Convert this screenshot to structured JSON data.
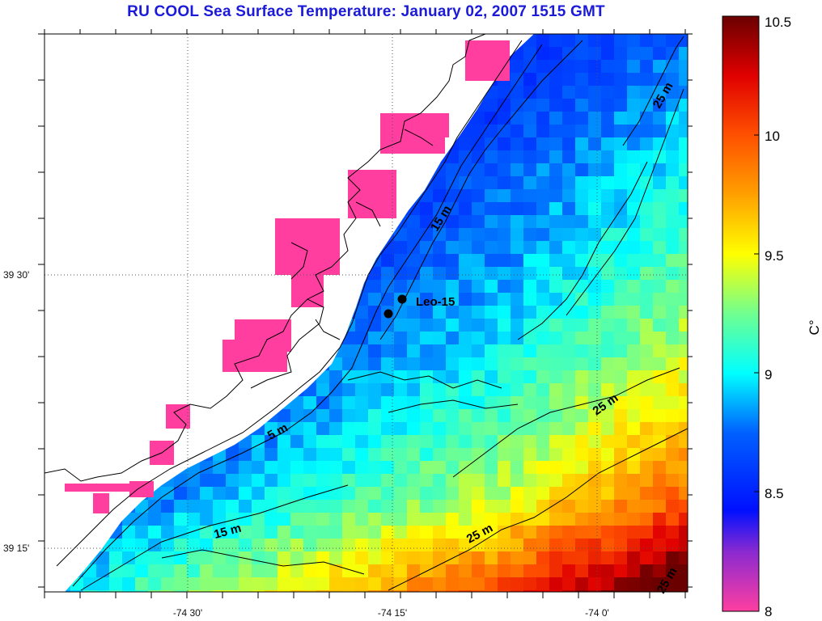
{
  "title": "RU COOL  Sea Surface Temperature:  January 02, 2007 1515 GMT",
  "map": {
    "x_ticks": [
      "-74 30'",
      "-74 15'",
      "-74 0'"
    ],
    "y_ticks": [
      "39 30'",
      "39 15'"
    ],
    "depth_contours": [
      {
        "label": "5 m"
      },
      {
        "label": "15 m"
      },
      {
        "label": "15 m"
      },
      {
        "label": "25 m"
      },
      {
        "label": "25 m"
      },
      {
        "label": "25 m"
      },
      {
        "label": "25 m"
      }
    ],
    "station": {
      "label": "Leo-15"
    },
    "colors": {
      "land": "#ffffff",
      "coastline": "#000000",
      "grid": "#555555"
    }
  },
  "colorbar": {
    "min": 8,
    "max": 10.5,
    "ticks": [
      "10.5",
      "10",
      "9.5",
      "9",
      "8.5",
      "8"
    ],
    "unit": "C°",
    "colors": [
      "#ff3ea0",
      "#3020e0",
      "#0040ff",
      "#00ffff",
      "#ffff00",
      "#ff8000",
      "#ff0000",
      "#6a0000"
    ]
  }
}
